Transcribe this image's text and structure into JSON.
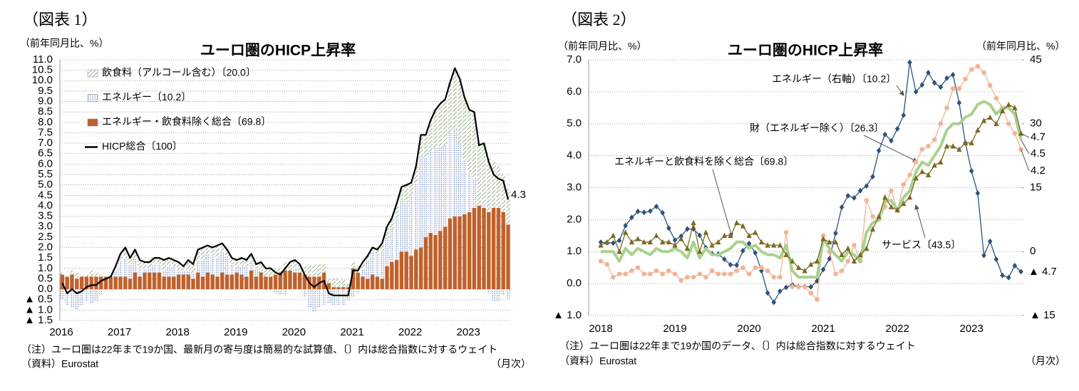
{
  "chart_data": [
    {
      "type": "bar",
      "figure_label": "（図表 1）",
      "title": "ユーロ圏のHICP上昇率",
      "y_label": "（前年同月比、%）",
      "x_label": "（月次）",
      "notes": [
        "（注）ユーロ圏は22年まで19か国、最新月の寄与度は簡易的な試算値、〔〕内は総合指数に対するウェイト",
        "（資料）Eurostat"
      ],
      "legend": "upper left",
      "grid": true,
      "categories": [
        "2016",
        null,
        null,
        null,
        null,
        null,
        null,
        null,
        null,
        null,
        null,
        null,
        "2017",
        null,
        null,
        null,
        null,
        null,
        null,
        null,
        null,
        null,
        null,
        null,
        "2018",
        null,
        null,
        null,
        null,
        null,
        null,
        null,
        null,
        null,
        null,
        null,
        "2019",
        null,
        null,
        null,
        null,
        null,
        null,
        null,
        null,
        null,
        null,
        null,
        "2020",
        null,
        null,
        null,
        null,
        null,
        null,
        null,
        null,
        null,
        null,
        null,
        "2021",
        null,
        null,
        null,
        null,
        null,
        null,
        null,
        null,
        null,
        null,
        null,
        "2022",
        null,
        null,
        null,
        null,
        null,
        null,
        null,
        null,
        null,
        null,
        null,
        "2023",
        null,
        null,
        null,
        null,
        null,
        null,
        null,
        null
      ],
      "ylim": [
        -1.5,
        11
      ],
      "yticks": [
        {
          "value": -1.5,
          "label": "▲ 1.5"
        },
        {
          "value": -1,
          "label": "▲ 1.0"
        },
        {
          "value": -0.5,
          "label": "▲ 0.5"
        },
        {
          "value": 0,
          "label": "0.0"
        },
        0.5,
        {
          "value": 1,
          "label": "1.0"
        },
        1.5,
        {
          "value": 2,
          "label": "2.0"
        },
        2.5,
        {
          "value": 3,
          "label": "3.0"
        },
        3.5,
        {
          "value": 4,
          "label": "4.0"
        },
        4.5,
        {
          "value": 5,
          "label": "5.0"
        },
        5.5,
        {
          "value": 6,
          "label": "6.0"
        },
        6.5,
        {
          "value": 7,
          "label": "7.0"
        },
        7.5,
        {
          "value": 8,
          "label": "8.0"
        },
        8.5,
        {
          "value": 9,
          "label": "9.0"
        },
        9.5,
        {
          "value": 10,
          "label": "10.0"
        },
        10.5,
        {
          "value": 11,
          "label": "11.0"
        }
      ],
      "series": [
        {
          "name": "飲食料（アルコール含む）〔20.0〕",
          "color": "#7d9a6a",
          "pattern": "hatch",
          "values": [
            0.1,
            0.0,
            0.2,
            0.3,
            0.1,
            0.1,
            0.3,
            0.2,
            0.1,
            0.0,
            0.1,
            0.2,
            0.3,
            0.5,
            0.3,
            0.4,
            0.4,
            0.3,
            0.3,
            0.3,
            0.3,
            0.5,
            0.4,
            0.3,
            0.4,
            0.2,
            0.5,
            0.4,
            0.5,
            0.6,
            0.4,
            0.4,
            0.6,
            0.4,
            0.3,
            0.3,
            0.3,
            0.4,
            0.3,
            0.3,
            0.2,
            0.4,
            0.5,
            0.5,
            0.3,
            0.2,
            0.4,
            0.4,
            0.4,
            0.4,
            0.4,
            0.6,
            0.6,
            0.6,
            0.4,
            0.2,
            0.4,
            0.4,
            0.4,
            0.2,
            0.3,
            0.3,
            0.3,
            0.2,
            0.1,
            0.2,
            0.4,
            0.5,
            0.5,
            0.6,
            0.6,
            0.8,
            0.6,
            0.8,
            1.0,
            1.1,
            1.5,
            1.8,
            2.1,
            2.2,
            2.4,
            2.9,
            3.1,
            3.0,
            3.0,
            3.2,
            3.0,
            2.9,
            2.6,
            2.2,
            2.0,
            1.8,
            1.7
          ]
        },
        {
          "name": "エネルギー〔10.2〕",
          "color": "#8ea3cf",
          "pattern": "dots",
          "values": [
            -0.5,
            -0.8,
            -0.9,
            -1.0,
            -0.8,
            -0.6,
            -0.7,
            -0.6,
            -0.3,
            -0.1,
            -0.1,
            0.3,
            0.8,
            0.9,
            0.7,
            0.7,
            0.4,
            0.2,
            0.2,
            0.4,
            0.4,
            0.3,
            0.5,
            0.5,
            0.2,
            0.2,
            0.2,
            0.3,
            0.6,
            0.8,
            0.9,
            0.9,
            0.9,
            1.0,
            0.9,
            0.5,
            0.3,
            0.4,
            0.5,
            0.5,
            0.4,
            0.1,
            -0.1,
            -0.1,
            -0.2,
            -0.3,
            -0.3,
            0.0,
            0.2,
            0.0,
            -0.4,
            -0.9,
            -1.1,
            -0.9,
            -0.8,
            -0.7,
            -0.8,
            -0.8,
            -0.8,
            -0.6,
            -0.4,
            -0.2,
            0.4,
            0.9,
            1.2,
            1.1,
            1.3,
            1.4,
            1.6,
            2.1,
            2.5,
            2.4,
            2.9,
            3.2,
            4.4,
            3.8,
            3.9,
            4.2,
            4.0,
            3.9,
            4.1,
            4.2,
            3.5,
            2.6,
            1.9,
            1.4,
            -0.1,
            0.2,
            -0.2,
            -0.6,
            -0.6,
            -0.3,
            -0.5
          ]
        },
        {
          "name": "エネルギー・飲食料除く総合〔69.8〕",
          "color": "#c0612b",
          "values": [
            0.7,
            0.6,
            0.7,
            0.5,
            0.6,
            0.6,
            0.6,
            0.6,
            0.6,
            0.6,
            0.6,
            0.6,
            0.6,
            0.6,
            0.5,
            0.8,
            0.6,
            0.8,
            0.8,
            0.8,
            0.8,
            0.6,
            0.6,
            0.6,
            0.7,
            0.7,
            0.7,
            0.5,
            0.8,
            0.6,
            0.8,
            0.7,
            0.6,
            0.8,
            0.7,
            0.7,
            0.8,
            0.7,
            0.6,
            0.9,
            0.6,
            0.8,
            0.6,
            0.6,
            0.7,
            0.8,
            0.9,
            0.9,
            0.8,
            0.8,
            0.7,
            0.6,
            0.6,
            0.6,
            0.8,
            0.3,
            0.1,
            0.1,
            0.1,
            0.1,
            1.0,
            0.8,
            0.6,
            0.5,
            0.7,
            0.6,
            0.5,
            1.1,
            1.3,
            1.4,
            1.8,
            1.8,
            1.6,
            1.9,
            2.0,
            2.5,
            2.7,
            2.6,
            2.8,
            3.0,
            3.4,
            3.5,
            3.5,
            3.6,
            3.7,
            3.9,
            4.0,
            3.9,
            3.7,
            3.9,
            3.9,
            3.7,
            3.1
          ]
        },
        {
          "name": "HICP総合〔100〕",
          "color": "#000000",
          "type": "line",
          "values": [
            0.3,
            -0.2,
            0.0,
            -0.2,
            -0.1,
            0.1,
            0.2,
            0.2,
            0.4,
            0.5,
            0.6,
            1.1,
            1.7,
            2.0,
            1.5,
            1.9,
            1.4,
            1.3,
            1.3,
            1.5,
            1.5,
            1.4,
            1.5,
            1.4,
            1.3,
            1.1,
            1.4,
            1.2,
            1.9,
            2.0,
            2.1,
            2.0,
            2.1,
            2.2,
            1.9,
            1.5,
            1.4,
            1.5,
            1.4,
            1.7,
            1.2,
            1.3,
            1.0,
            1.0,
            0.8,
            0.7,
            1.0,
            1.3,
            1.4,
            1.2,
            0.7,
            0.3,
            0.1,
            0.3,
            0.4,
            -0.2,
            -0.3,
            -0.3,
            -0.3,
            -0.3,
            0.9,
            0.9,
            1.3,
            1.6,
            2.0,
            1.9,
            2.2,
            3.0,
            3.4,
            4.1,
            4.9,
            5.0,
            5.1,
            5.9,
            7.4,
            7.4,
            8.1,
            8.6,
            8.9,
            9.1,
            9.9,
            10.6,
            10.1,
            9.2,
            8.6,
            8.5,
            6.9,
            7.0,
            6.1,
            5.5,
            5.3,
            5.2,
            4.3
          ]
        }
      ]
    },
    {
      "type": "line",
      "figure_label": "（図表 2）",
      "title": "ユーロ圏のHICP上昇率",
      "y_label": "（前年同月比、%）",
      "y2_label": "（前年同月比、%）",
      "x_label": "（月次）",
      "notes": [
        "（注）ユーロ圏は22年まで19か国のデータ、〔〕内は総合指数に対するウェイト",
        "（資料）Eurostat"
      ],
      "grid": true,
      "categories": [
        "2018",
        null,
        null,
        null,
        null,
        null,
        null,
        null,
        null,
        null,
        null,
        null,
        "2019",
        null,
        null,
        null,
        null,
        null,
        null,
        null,
        null,
        null,
        null,
        null,
        "2020",
        null,
        null,
        null,
        null,
        null,
        null,
        null,
        null,
        null,
        null,
        null,
        "2021",
        null,
        null,
        null,
        null,
        null,
        null,
        null,
        null,
        null,
        null,
        null,
        "2022",
        null,
        null,
        null,
        null,
        null,
        null,
        null,
        null,
        null,
        null,
        null,
        "2023",
        null,
        null,
        null,
        null,
        null,
        null,
        null,
        null
      ],
      "ylim": [
        -1,
        7
      ],
      "yticks": [
        {
          "value": -1,
          "label": "▲ 1.0"
        },
        {
          "value": 0,
          "label": "0.0"
        },
        {
          "value": 1,
          "label": "1.0"
        },
        {
          "value": 2,
          "label": "2.0"
        },
        {
          "value": 3,
          "label": "3.0"
        },
        {
          "value": 4,
          "label": "4.0"
        },
        {
          "value": 5,
          "label": "5.0"
        },
        {
          "value": 6,
          "label": "6.0"
        },
        {
          "value": 7,
          "label": "7.0"
        }
      ],
      "y2lim": [
        -15,
        45
      ],
      "y2ticks": [
        {
          "value": -15,
          "label": "▲ 15"
        },
        0,
        15,
        30,
        45
      ],
      "series": [
        {
          "name": "エネルギー（右軸）〔10.2〕",
          "color": "#2f527c",
          "marker": "diamond",
          "axis": "y2",
          "values": [
            2.2,
            2.1,
            2.0,
            2.6,
            6.1,
            8.0,
            9.4,
            9.2,
            9.5,
            10.6,
            9.1,
            5.5,
            2.7,
            3.6,
            5.3,
            5.3,
            3.8,
            0.9,
            -0.5,
            -0.6,
            -1.8,
            -3.1,
            -3.2,
            0.2,
            1.9,
            -0.3,
            -4.5,
            -9.7,
            -11.9,
            -9.3,
            -8.4,
            -7.8,
            -8.2,
            -8.2,
            -8.3,
            -6.9,
            -4.2,
            -1.7,
            4.3,
            10.4,
            13.1,
            12.6,
            14.3,
            15.4,
            17.6,
            23.7,
            27.5,
            26.0,
            28.8,
            32.0,
            44.4,
            37.5,
            39.1,
            42.0,
            39.6,
            38.6,
            40.7,
            41.5,
            34.9,
            25.5,
            18.9,
            13.7,
            -0.9,
            2.4,
            -1.8,
            -5.6,
            -6.1,
            -3.3,
            -4.7
          ],
          "value_labels": [
            null,
            null,
            null,
            null,
            null,
            null,
            null,
            null,
            null,
            null,
            null,
            null,
            null,
            null,
            null,
            null,
            null,
            null,
            null,
            null,
            null,
            null,
            null,
            null,
            null,
            null,
            null,
            null,
            null,
            null,
            null,
            null,
            null,
            null,
            null,
            null,
            null,
            null,
            null,
            null,
            null,
            null,
            null,
            null,
            null,
            null,
            null,
            null,
            null,
            null,
            null,
            null,
            null,
            null,
            null,
            null,
            null,
            null,
            null,
            null,
            null,
            null,
            null,
            null,
            null,
            null,
            null,
            null,
            "▲ 4.7"
          ]
        },
        {
          "name": "財（エネルギー除く）〔26.3〕",
          "color": "#f2b394",
          "marker": "circle",
          "values": [
            0.7,
            0.6,
            0.2,
            0.3,
            0.3,
            0.4,
            0.5,
            0.3,
            0.3,
            0.4,
            0.3,
            0.4,
            0.3,
            0.1,
            0.2,
            0.2,
            0.3,
            0.2,
            0.4,
            0.3,
            0.3,
            0.3,
            0.4,
            0.5,
            0.3,
            0.5,
            0.5,
            0.4,
            0.2,
            0.2,
            1.6,
            -0.1,
            -0.1,
            -0.1,
            -0.3,
            -0.5,
            1.5,
            1.0,
            0.3,
            0.4,
            0.7,
            1.2,
            0.7,
            2.6,
            2.1,
            2.0,
            2.4,
            2.9,
            2.3,
            3.1,
            3.4,
            3.8,
            4.2,
            4.3,
            4.5,
            5.0,
            5.5,
            6.1,
            6.1,
            6.4,
            6.7,
            6.8,
            6.6,
            6.2,
            5.8,
            5.5,
            5.0,
            4.7,
            4.2
          ]
        },
        {
          "name": "エネルギーと飲食料を除く総合〔69.8〕",
          "color": "#a9d18e",
          "values": [
            1.0,
            1.0,
            1.0,
            0.7,
            1.1,
            0.9,
            1.1,
            1.0,
            0.9,
            1.1,
            1.0,
            1.0,
            1.1,
            1.0,
            0.8,
            1.3,
            0.8,
            1.1,
            0.9,
            0.9,
            1.0,
            1.1,
            1.3,
            1.3,
            1.1,
            1.2,
            1.0,
            0.9,
            0.9,
            0.8,
            1.2,
            0.4,
            0.2,
            0.2,
            0.2,
            0.2,
            1.4,
            1.1,
            0.9,
            0.7,
            1.0,
            0.9,
            0.7,
            1.6,
            1.9,
            2.0,
            2.6,
            2.6,
            2.3,
            2.7,
            2.9,
            3.5,
            3.8,
            3.7,
            4.0,
            4.3,
            4.8,
            5.0,
            5.0,
            5.2,
            5.3,
            5.6,
            5.7,
            5.6,
            5.3,
            5.5,
            5.5,
            5.3,
            4.5
          ]
        },
        {
          "name": "サービス〔43.5〕",
          "color": "#7a6a1f",
          "marker": "triangle",
          "values": [
            1.2,
            1.3,
            1.5,
            1.0,
            1.6,
            1.3,
            1.4,
            1.3,
            1.3,
            1.5,
            1.3,
            1.3,
            1.2,
            1.4,
            1.1,
            1.9,
            1.0,
            1.6,
            1.2,
            1.3,
            1.5,
            1.5,
            1.9,
            1.8,
            1.5,
            1.6,
            1.3,
            1.2,
            1.2,
            1.2,
            0.9,
            0.7,
            0.5,
            0.4,
            0.6,
            0.7,
            1.4,
            1.3,
            1.3,
            0.9,
            1.1,
            0.7,
            0.9,
            1.1,
            1.7,
            2.1,
            2.7,
            2.4,
            2.3,
            2.5,
            2.7,
            3.3,
            3.5,
            3.4,
            3.7,
            3.8,
            4.3,
            4.3,
            4.2,
            4.4,
            4.4,
            4.8,
            5.1,
            5.2,
            5.0,
            5.4,
            5.6,
            5.5,
            4.7
          ]
        }
      ]
    }
  ]
}
